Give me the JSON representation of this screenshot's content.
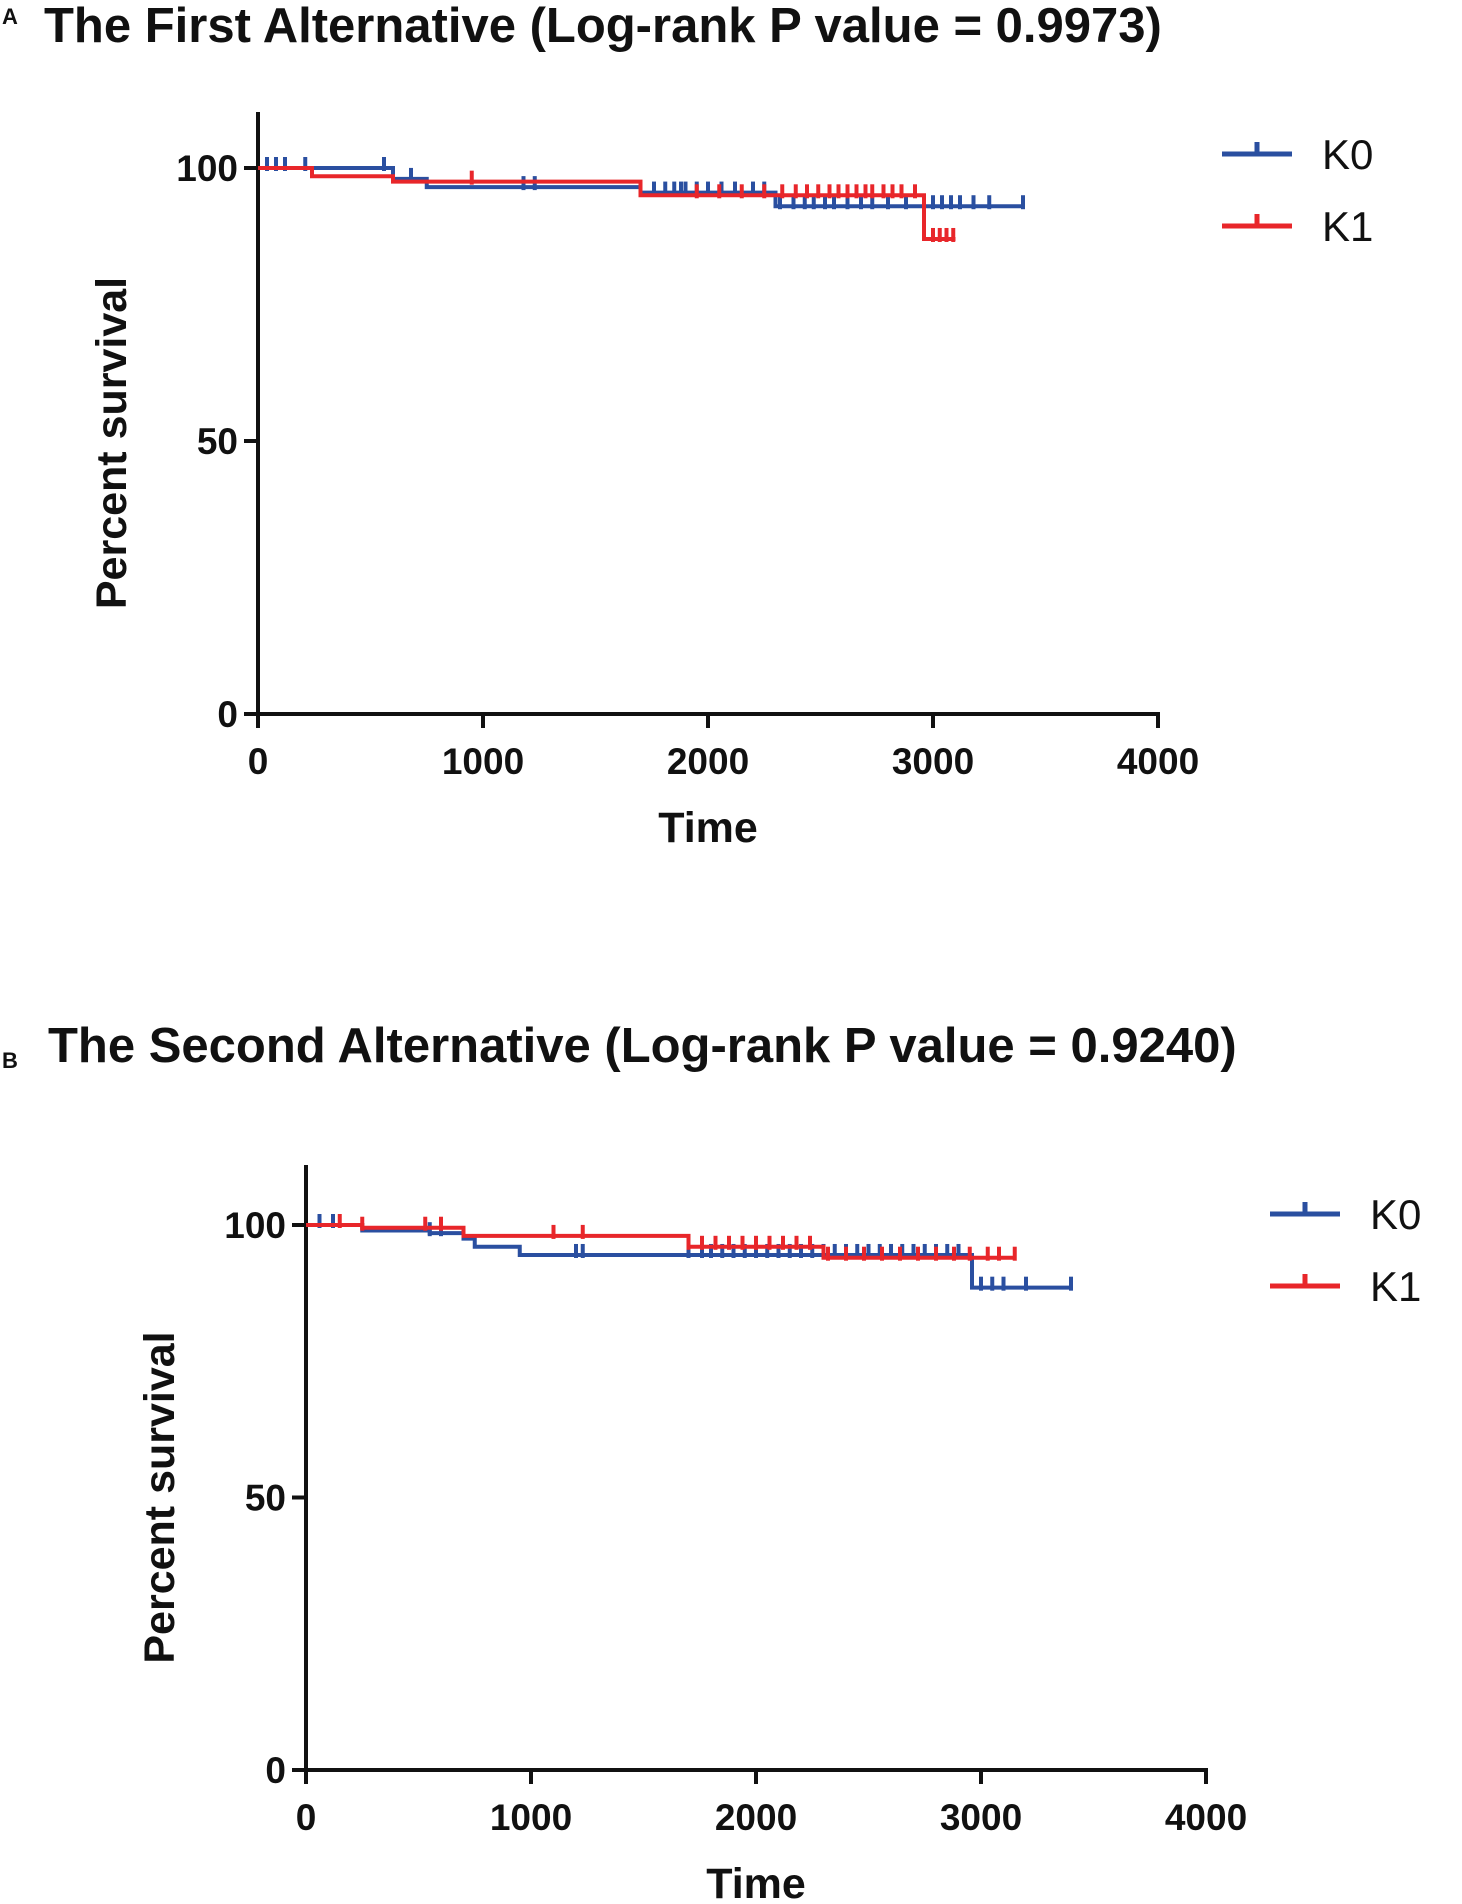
{
  "figure": {
    "panels": [
      {
        "letter": "A",
        "title": "The First Alternative (Log-rank P value = 0.9973)"
      },
      {
        "letter": "B",
        "title": "The Second Alternative (Log-rank P value = 0.9240)"
      }
    ]
  },
  "colors": {
    "K0": "#2a4fa0",
    "K1": "#e8262a",
    "axis": "#111111"
  },
  "chart_data": [
    {
      "type": "line",
      "subtype": "kaplan-meier",
      "title": "The First Alternative (Log-rank P value = 0.9973)",
      "xlabel": "Time",
      "ylabel": "Percent survival",
      "xlim": [
        0,
        4000
      ],
      "ylim": [
        0,
        100
      ],
      "xticks": [
        0,
        1000,
        2000,
        3000,
        4000
      ],
      "yticks": [
        0,
        50,
        100
      ],
      "legend": "top-right",
      "series": [
        {
          "name": "K0",
          "color": "#2a4fa0",
          "steps": [
            [
              0,
              100
            ],
            [
              600,
              98
            ],
            [
              750,
              96.5
            ],
            [
              1650,
              96.5
            ],
            [
              1700,
              95.5
            ],
            [
              2300,
              93
            ],
            [
              3400,
              93
            ]
          ],
          "censor": [
            40,
            80,
            120,
            210,
            560,
            600,
            680,
            1180,
            1230,
            1700,
            1760,
            1810,
            1850,
            1880,
            1900,
            1950,
            2000,
            2060,
            2120,
            2200,
            2250,
            2320,
            2380,
            2430,
            2470,
            2520,
            2560,
            2620,
            2680,
            2730,
            2800,
            2880,
            3000,
            3040,
            3080,
            3120,
            3180,
            3250,
            3400
          ]
        },
        {
          "name": "K1",
          "color": "#e8262a",
          "steps": [
            [
              0,
              100
            ],
            [
              240,
              98.5
            ],
            [
              600,
              97.5
            ],
            [
              950,
              97.5
            ],
            [
              1650,
              97.5
            ],
            [
              1700,
              95
            ],
            [
              2950,
              95
            ],
            [
              2960,
              87
            ],
            [
              3100,
              87
            ]
          ],
          "censor": [
            950,
            1950,
            2050,
            2150,
            2250,
            2330,
            2390,
            2440,
            2490,
            2540,
            2580,
            2620,
            2660,
            2700,
            2730,
            2780,
            2820,
            2860,
            2920,
            3000,
            3030,
            3060,
            3090
          ]
        }
      ]
    },
    {
      "type": "line",
      "subtype": "kaplan-meier",
      "title": "The Second Alternative (Log-rank P value = 0.9240)",
      "xlabel": "Time",
      "ylabel": "Percent survival",
      "xlim": [
        0,
        4000
      ],
      "ylim": [
        0,
        100
      ],
      "xticks": [
        0,
        1000,
        2000,
        3000,
        4000
      ],
      "yticks": [
        0,
        50,
        100
      ],
      "legend": "top-right",
      "series": [
        {
          "name": "K0",
          "color": "#2a4fa0",
          "steps": [
            [
              0,
              100
            ],
            [
              250,
              99
            ],
            [
              550,
              98.5
            ],
            [
              700,
              97.5
            ],
            [
              750,
              96
            ],
            [
              950,
              94.5
            ],
            [
              2950,
              94.5
            ],
            [
              2960,
              88.5
            ],
            [
              3400,
              88.5
            ]
          ],
          "censor": [
            60,
            120,
            550,
            600,
            1200,
            1230,
            1700,
            1760,
            1800,
            1850,
            1900,
            1950,
            2000,
            2050,
            2100,
            2150,
            2200,
            2250,
            2300,
            2350,
            2400,
            2450,
            2500,
            2550,
            2600,
            2650,
            2700,
            2750,
            2800,
            2850,
            2900,
            3000,
            3050,
            3100,
            3200,
            3400
          ]
        },
        {
          "name": "K1",
          "color": "#e8262a",
          "steps": [
            [
              0,
              100
            ],
            [
              250,
              99.5
            ],
            [
              700,
              98
            ],
            [
              1650,
              98
            ],
            [
              1700,
              96
            ],
            [
              2280,
              96
            ],
            [
              2300,
              94
            ],
            [
              2950,
              94
            ],
            [
              3150,
              94
            ]
          ],
          "censor": [
            150,
            250,
            530,
            600,
            1100,
            1230,
            1700,
            1760,
            1820,
            1880,
            1940,
            2000,
            2060,
            2120,
            2180,
            2240,
            2320,
            2400,
            2480,
            2560,
            2640,
            2720,
            2800,
            2880,
            2950,
            3030,
            3080,
            3150
          ]
        }
      ]
    }
  ]
}
